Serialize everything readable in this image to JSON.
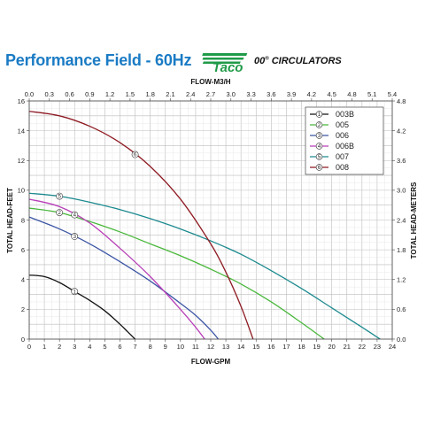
{
  "header": {
    "title": "Performance Field - 60Hz",
    "brand": "Taco",
    "brand_series": "00",
    "brand_suffix": "CIRCULATORS"
  },
  "colors": {
    "title": "#1a7bc4",
    "brand_green": "#1f9a48"
  },
  "chart_data": {
    "type": "line",
    "title": "",
    "xlabel": "FLOW-GPM",
    "ylabel": "TOTAL HEAD-FEET",
    "x2label": "FLOW-M3/H",
    "y2label": "TOTAL HEAD-METERS",
    "xlim": [
      0,
      24
    ],
    "ylim": [
      0,
      16
    ],
    "x2lim": [
      0,
      5.4
    ],
    "y2lim": [
      0,
      4.8
    ],
    "x_ticks": [
      "0",
      "1",
      "2",
      "3",
      "4",
      "5",
      "6",
      "7",
      "8",
      "9",
      "10",
      "11",
      "12",
      "13",
      "14",
      "15",
      "16",
      "17",
      "18",
      "19",
      "20",
      "21",
      "22",
      "23",
      "24"
    ],
    "y_ticks": [
      "0",
      "2",
      "4",
      "6",
      "8",
      "10",
      "12",
      "14",
      "16"
    ],
    "x2_ticks": [
      "0.0",
      "0.3",
      "0.6",
      "0.9",
      "1.2",
      "1.5",
      "1.8",
      "2.1",
      "2.4",
      "2.7",
      "3.0",
      "3.3",
      "3.6",
      "3.9",
      "4.2",
      "4.5",
      "4.8",
      "5.1",
      "5.4"
    ],
    "y2_ticks": [
      "0.0",
      "0.6",
      "1.2",
      "1.8",
      "2.4",
      "3.0",
      "3.6",
      "4.2",
      "4.8"
    ],
    "grid": true,
    "legend": "top-right",
    "series": [
      {
        "name": "003B",
        "marker": "1",
        "color": "#111111",
        "x": [
          0,
          1,
          2,
          3,
          4,
          5,
          6,
          6.5,
          7.0
        ],
        "y": [
          4.3,
          4.2,
          3.8,
          3.2,
          2.6,
          1.9,
          1.0,
          0.5,
          0
        ],
        "marker_at": 3
      },
      {
        "name": "005",
        "marker": "2",
        "color": "#4ab83c",
        "x": [
          0,
          2,
          4,
          6,
          8,
          10,
          12,
          14,
          16,
          18,
          19.5
        ],
        "y": [
          8.8,
          8.5,
          7.9,
          7.2,
          6.4,
          5.6,
          4.7,
          3.7,
          2.5,
          1.1,
          0
        ],
        "marker_at": 2
      },
      {
        "name": "006",
        "marker": "3",
        "color": "#3b55a5",
        "x": [
          0,
          2,
          4,
          6,
          8,
          10,
          11,
          12,
          12.5
        ],
        "y": [
          8.2,
          7.4,
          6.4,
          5.2,
          3.9,
          2.4,
          1.6,
          0.6,
          0
        ],
        "marker_at": 3
      },
      {
        "name": "006B",
        "marker": "4",
        "color": "#b83fb8",
        "x": [
          0,
          2,
          4,
          6,
          8,
          10,
          11,
          11.6
        ],
        "y": [
          9.4,
          8.9,
          7.8,
          6.1,
          4.2,
          2.0,
          0.8,
          0
        ],
        "marker_at": 3
      },
      {
        "name": "007",
        "marker": "5",
        "color": "#1d8a8f",
        "x": [
          0,
          2,
          4,
          6,
          8,
          10,
          12,
          14,
          16,
          18,
          20,
          22,
          23.2
        ],
        "y": [
          9.8,
          9.6,
          9.2,
          8.7,
          8.1,
          7.4,
          6.6,
          5.7,
          4.6,
          3.4,
          2.1,
          0.8,
          0
        ],
        "marker_at": 2
      },
      {
        "name": "008",
        "marker": "6",
        "color": "#8e1a22",
        "x": [
          0,
          2,
          4,
          6,
          8,
          10,
          12,
          13,
          14,
          14.8
        ],
        "y": [
          15.3,
          15.0,
          14.3,
          13.2,
          11.6,
          9.4,
          6.4,
          4.5,
          2.2,
          0
        ],
        "marker_at": 7
      }
    ]
  }
}
